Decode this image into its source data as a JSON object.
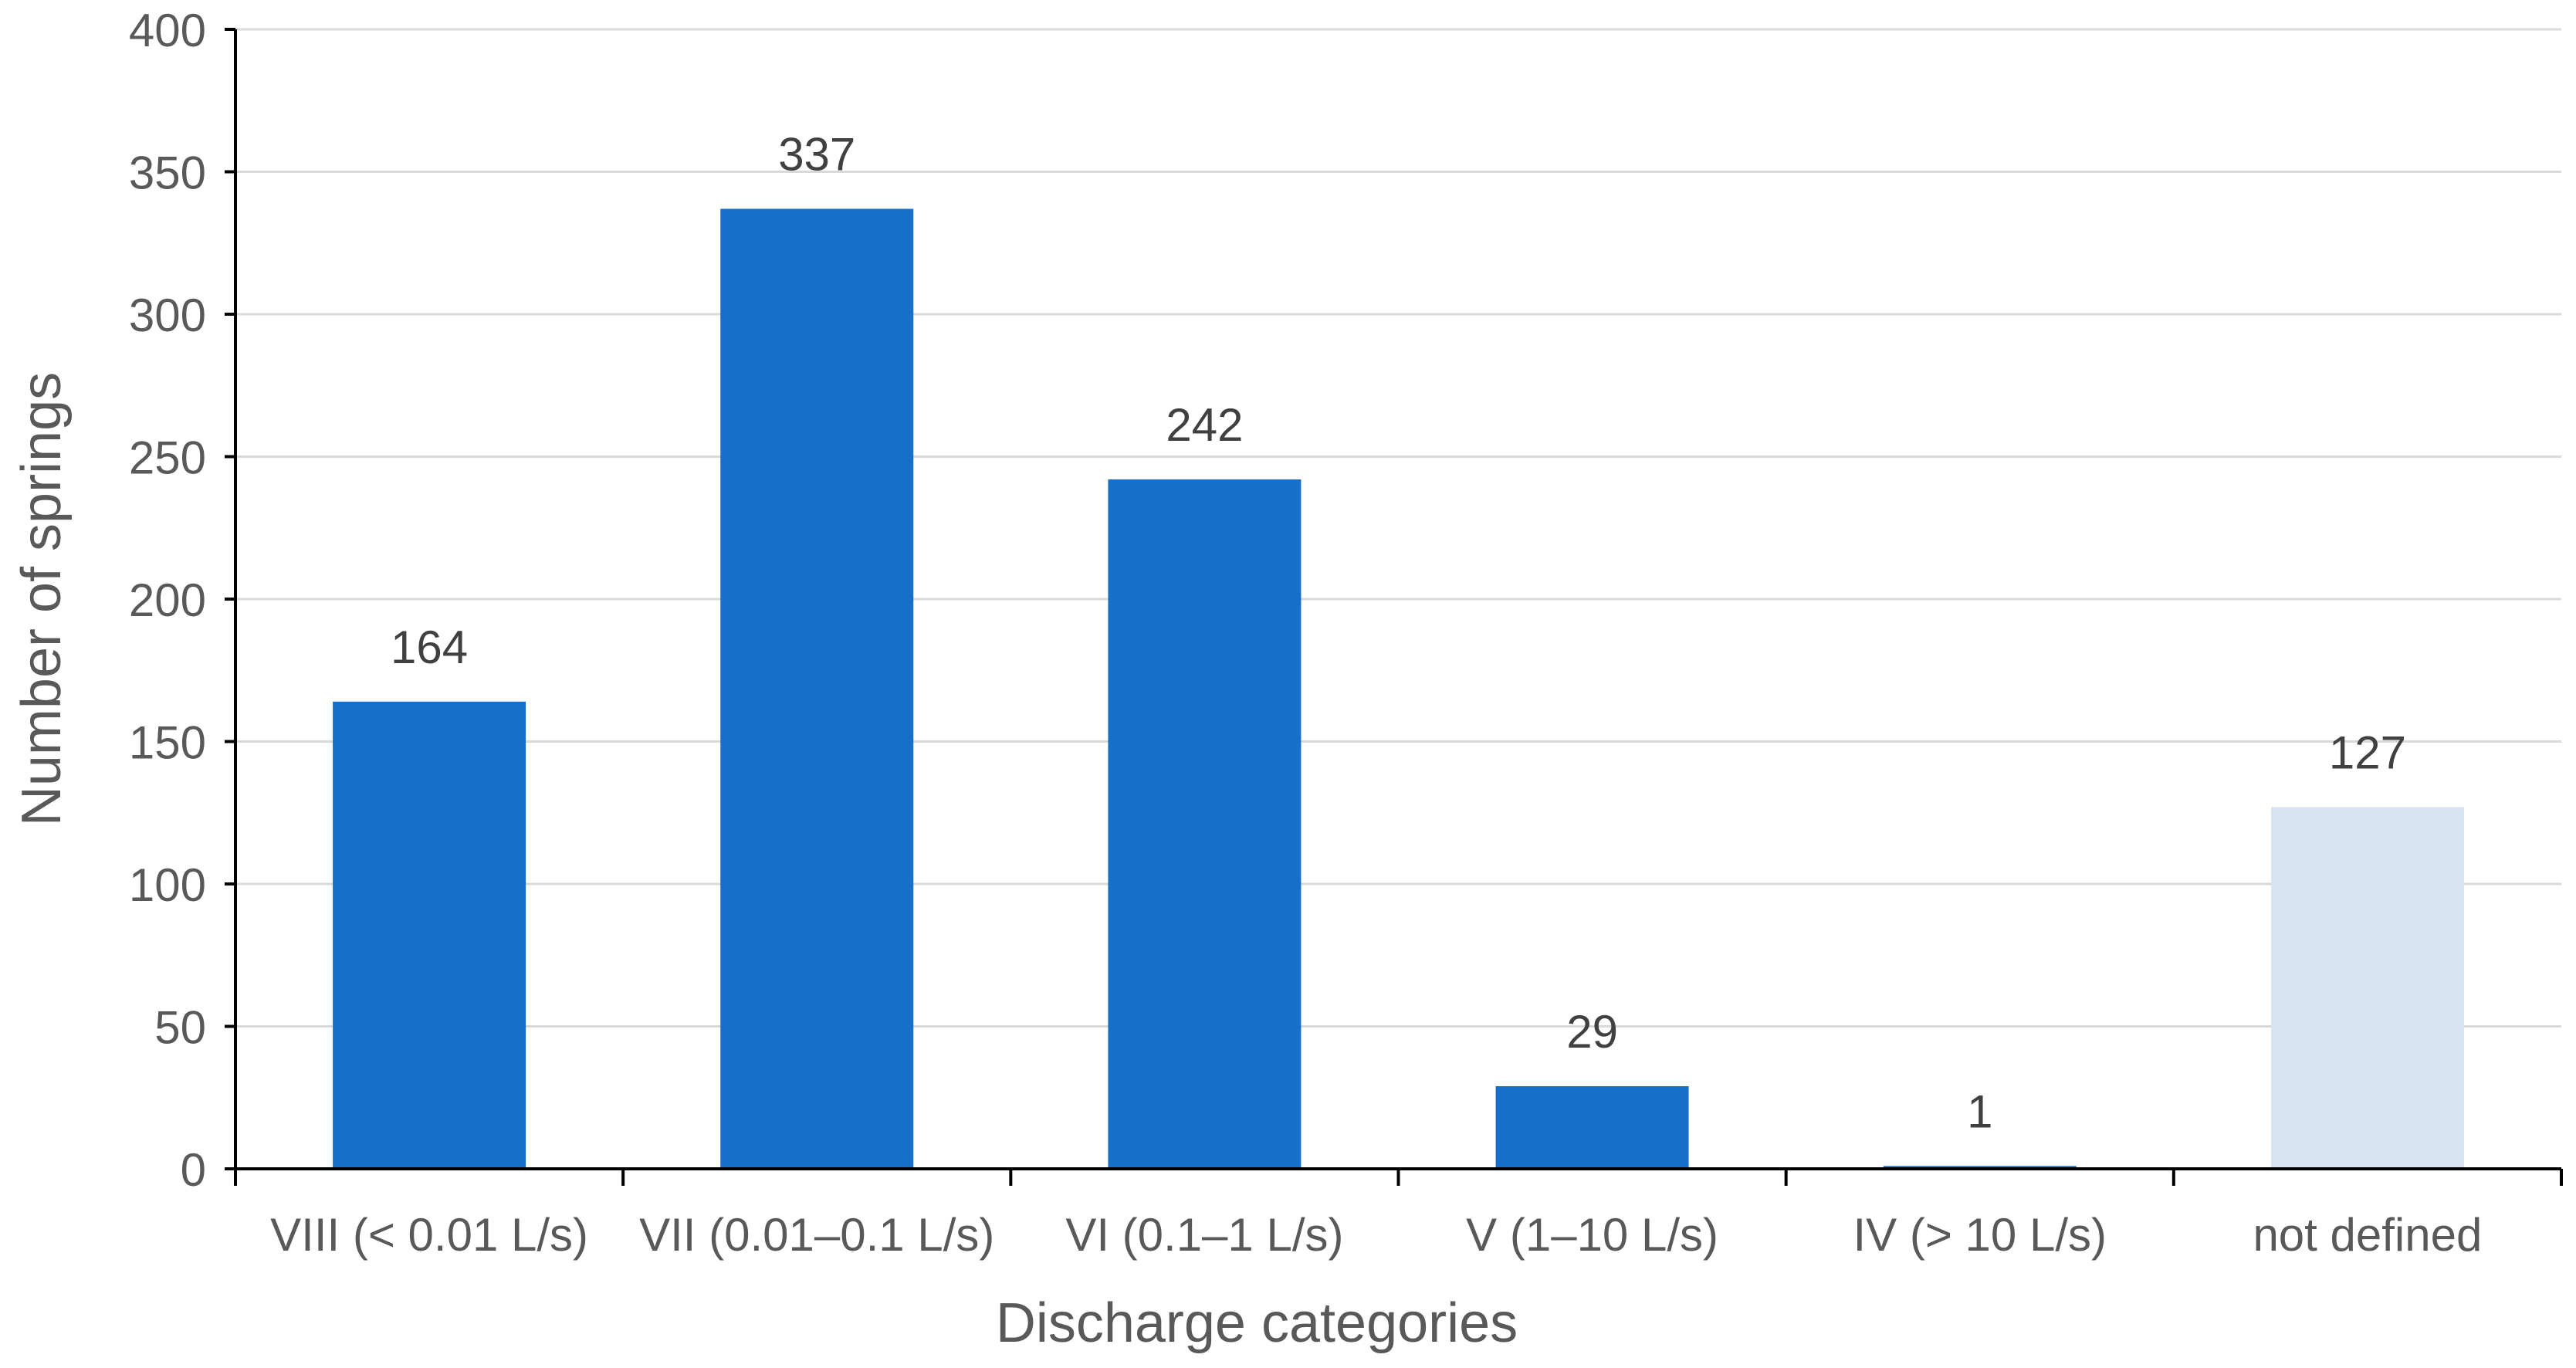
{
  "chart_data": {
    "type": "bar",
    "title": "",
    "xlabel": "Discharge categories",
    "ylabel": "Number of springs",
    "categories": [
      "VIII (< 0.01 L/s)",
      "VII (0.01–0.1 L/s)",
      "VI (0.1–1 L/s)",
      "V (1–10 L/s)",
      "IV (> 10 L/s)",
      "not defined"
    ],
    "values": [
      164,
      337,
      242,
      29,
      1,
      127
    ],
    "bar_colors": [
      "#1670C9",
      "#1670C9",
      "#1670C9",
      "#1670C9",
      "#1670C9",
      "#D9E4F3"
    ],
    "data_labels": [
      "164",
      "337",
      "242",
      "29",
      "1",
      "127"
    ],
    "y_ticks": [
      0,
      50,
      100,
      150,
      200,
      250,
      300,
      350,
      400
    ],
    "ylim": [
      0,
      400
    ],
    "grid": true,
    "legend": "none",
    "colors": {
      "bar": "#1670C9",
      "bar_undefined": "#D9E4F3",
      "grid": "#D9D9D9",
      "axis": "#000000",
      "text": "#595959"
    }
  }
}
